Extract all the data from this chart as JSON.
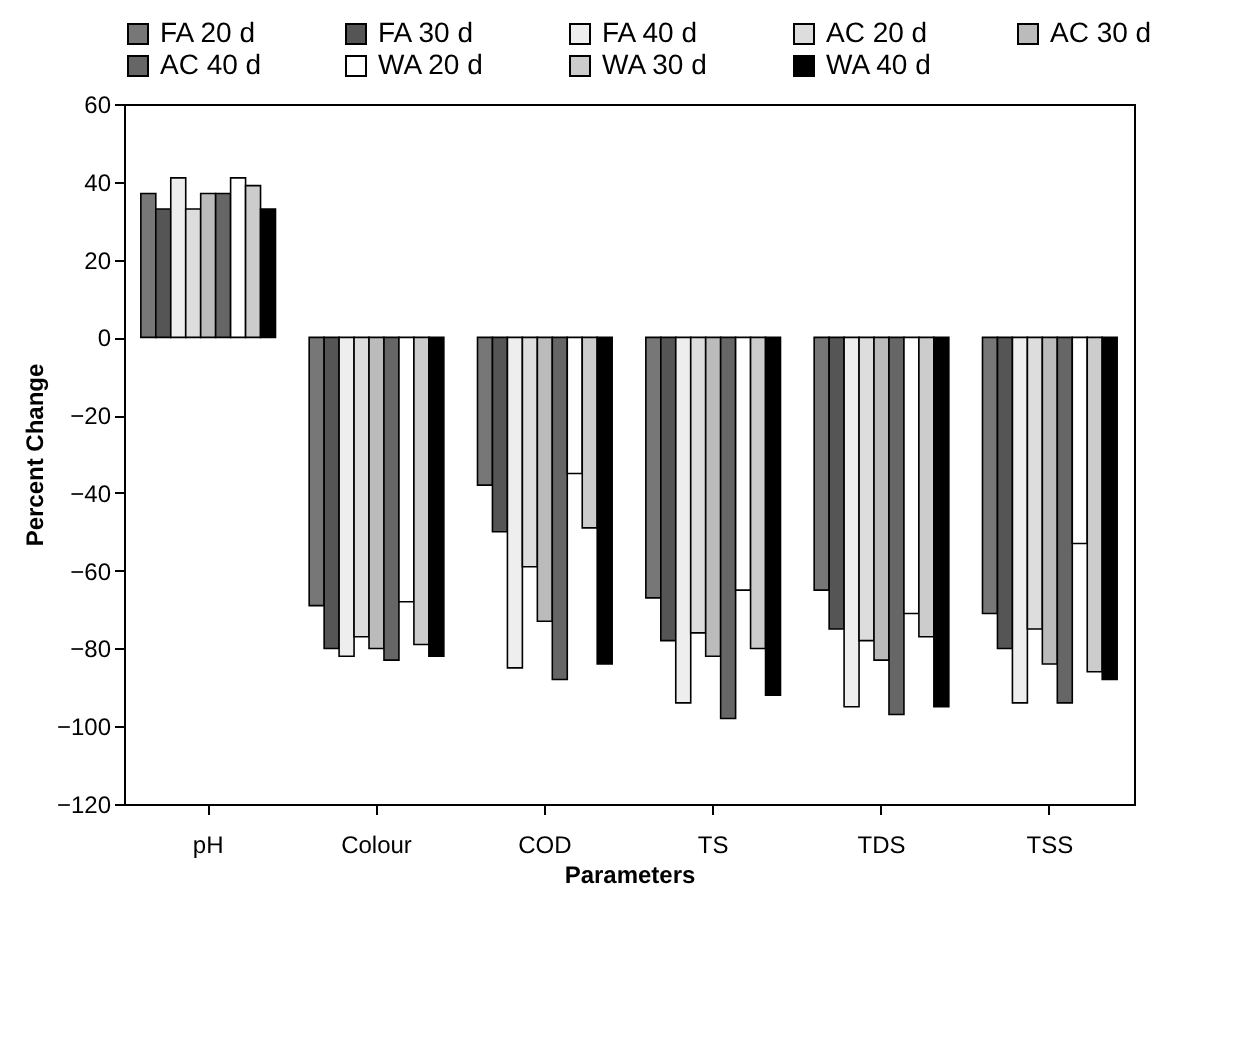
{
  "chart_data": {
    "type": "bar",
    "xlabel": "Parameters",
    "ylabel": "Percent Change",
    "categories": [
      "pH",
      "Colour",
      "COD",
      "TS",
      "TDS",
      "TSS"
    ],
    "ylim": [
      -120,
      60
    ],
    "yticks": [
      -120,
      -100,
      -80,
      -60,
      -40,
      -20,
      0,
      20,
      40,
      60
    ],
    "grid": false,
    "legend": "top",
    "series": [
      {
        "name": "FA 20 d",
        "color": "#777777",
        "values": [
          37,
          -69,
          -38,
          -67,
          -65,
          -71
        ]
      },
      {
        "name": "FA 30 d",
        "color": "#555555",
        "values": [
          33,
          -80,
          -50,
          -78,
          -75,
          -80
        ]
      },
      {
        "name": "FA 40 d",
        "color": "#eeeeee",
        "values": [
          41,
          -82,
          -85,
          -94,
          -95,
          -94
        ]
      },
      {
        "name": "AC 20 d",
        "color": "#dddddd",
        "values": [
          33,
          -77,
          -59,
          -76,
          -78,
          -75
        ]
      },
      {
        "name": "AC 30 d",
        "color": "#bbbbbb",
        "values": [
          37,
          -80,
          -73,
          -82,
          -83,
          -84
        ]
      },
      {
        "name": "AC 40 d",
        "color": "#666666",
        "values": [
          37,
          -83,
          -88,
          -98,
          -97,
          -94
        ]
      },
      {
        "name": "WA 20 d",
        "color": "#ffffff",
        "values": [
          41,
          -68,
          -35,
          -65,
          -71,
          -53
        ]
      },
      {
        "name": "WA 30 d",
        "color": "#cccccc",
        "values": [
          39,
          -79,
          -49,
          -80,
          -77,
          -86
        ]
      },
      {
        "name": "WA 40 d",
        "color": "#000000",
        "values": [
          33,
          -82,
          -84,
          -92,
          -95,
          -88
        ]
      }
    ]
  }
}
